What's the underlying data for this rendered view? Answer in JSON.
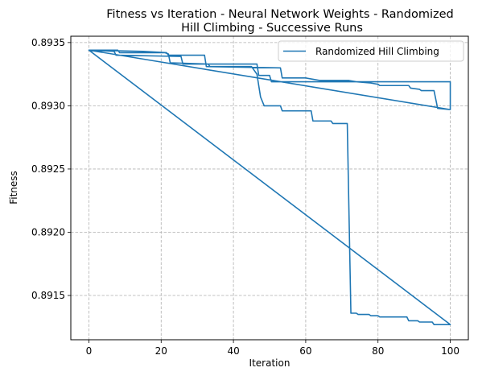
{
  "chart_data": {
    "type": "line",
    "title_line1": "Fitness vs Iteration - Neural Network Weights - Randomized",
    "title_line2": "Hill Climbing - Successive Runs",
    "xlabel": "Iteration",
    "ylabel": "Fitness",
    "xlim": [
      -5,
      105
    ],
    "ylim": [
      0.89115,
      0.89355
    ],
    "xticks": [
      0,
      20,
      40,
      60,
      80,
      100
    ],
    "xtick_labels": [
      "0",
      "20",
      "40",
      "60",
      "80",
      "100"
    ],
    "yticks": [
      0.8915,
      0.892,
      0.8925,
      0.893,
      0.8935
    ],
    "ytick_labels": [
      "0.8915",
      "0.8920",
      "0.8925",
      "0.8930",
      "0.8935"
    ],
    "grid": true,
    "legend": {
      "placement": "top-right",
      "entries": [
        "Randomized Hill Climbing"
      ]
    },
    "color": "#1f77b4",
    "series": [
      {
        "name": "Randomized Hill Climbing",
        "points": [
          [
            0,
            0.89344
          ],
          [
            8,
            0.89344
          ],
          [
            8.5,
            0.89342
          ],
          [
            21,
            0.89342
          ],
          [
            22,
            0.89341
          ],
          [
            22.5,
            0.89334
          ],
          [
            33,
            0.89333
          ],
          [
            33.5,
            0.89331
          ],
          [
            45,
            0.89331
          ],
          [
            46.5,
            0.89325
          ],
          [
            47.5,
            0.89307
          ],
          [
            48.5,
            0.893
          ],
          [
            53,
            0.893
          ],
          [
            53.5,
            0.89296
          ],
          [
            61.5,
            0.89296
          ],
          [
            62,
            0.89288
          ],
          [
            67,
            0.89288
          ],
          [
            67.5,
            0.89286
          ],
          [
            71.5,
            0.89286
          ],
          [
            72.5,
            0.89136
          ],
          [
            74,
            0.89136
          ],
          [
            74.5,
            0.89135
          ],
          [
            77.5,
            0.89135
          ],
          [
            78,
            0.89134
          ],
          [
            80,
            0.89134
          ],
          [
            80.5,
            0.89133
          ],
          [
            88,
            0.89133
          ],
          [
            88.5,
            0.8913
          ],
          [
            91,
            0.8913
          ],
          [
            91.5,
            0.89129
          ],
          [
            95,
            0.89129
          ],
          [
            95.5,
            0.89127
          ],
          [
            100,
            0.89127
          ],
          [
            0,
            0.89344
          ],
          [
            100,
            0.89297
          ],
          [
            0,
            0.89344
          ],
          [
            7,
            0.89343
          ],
          [
            7.5,
            0.8934
          ],
          [
            25.5,
            0.89339
          ],
          [
            26,
            0.89333
          ],
          [
            46.5,
            0.89333
          ],
          [
            47,
            0.89324
          ],
          [
            50,
            0.89324
          ],
          [
            50.5,
            0.89319
          ],
          [
            100,
            0.89319
          ],
          [
            100,
            0.89297
          ],
          [
            0,
            0.89344
          ],
          [
            15,
            0.89343
          ],
          [
            21.5,
            0.89342
          ],
          [
            22,
            0.8934
          ],
          [
            32,
            0.8934
          ],
          [
            32.5,
            0.89331
          ],
          [
            53,
            0.8933
          ],
          [
            53.5,
            0.89322
          ],
          [
            60,
            0.89322
          ],
          [
            62,
            0.89321
          ],
          [
            64,
            0.8932
          ],
          [
            72,
            0.8932
          ],
          [
            74,
            0.89319
          ],
          [
            78,
            0.89318
          ],
          [
            80,
            0.89317
          ],
          [
            80.5,
            0.89316
          ],
          [
            88.5,
            0.89316
          ],
          [
            89,
            0.89314
          ],
          [
            91.5,
            0.89313
          ],
          [
            92,
            0.89312
          ],
          [
            95.5,
            0.89312
          ],
          [
            96.5,
            0.89298
          ],
          [
            100,
            0.89297
          ]
        ]
      }
    ]
  }
}
